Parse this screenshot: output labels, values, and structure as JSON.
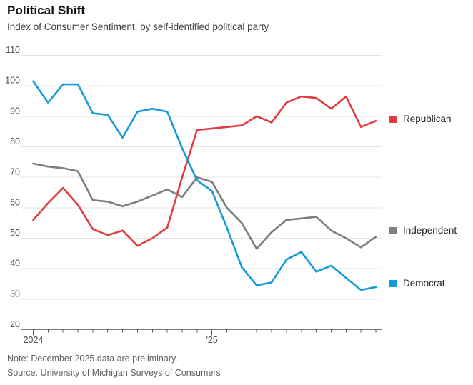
{
  "header": {
    "title": "Political Shift",
    "subtitle": "Index of Consumer Sentiment, by self-identified political party"
  },
  "footer": {
    "note": "Note: December 2025 data are preliminary.",
    "source": "Source: University of Michigan Surveys of Consumers"
  },
  "colors": {
    "republican": "#e03b40",
    "independent": "#7d7d80",
    "democrat": "#149bd8",
    "gridline": "#e4e4e4",
    "axis_line": "#7a7a7a",
    "tick": "#555555",
    "axis_label": "#4d4d4d"
  },
  "chart_data": {
    "type": "line",
    "x_axis": {
      "n_points": 24,
      "start": "Jan 2024",
      "end": "Dec 2025",
      "tick_interval": "monthly",
      "year_labels": [
        {
          "label": "2024",
          "month_index": 0
        },
        {
          "label": "'25",
          "month_index": 12
        }
      ]
    },
    "ylim": [
      20,
      110
    ],
    "y_ticks": [
      20,
      30,
      40,
      50,
      60,
      70,
      80,
      90,
      100,
      110
    ],
    "grid": "horizontal",
    "legend_position": "right",
    "series": [
      {
        "name": "Republican",
        "color_key": "republican",
        "values": [
          56,
          61.5,
          66.5,
          61,
          53,
          51,
          52.5,
          47.5,
          50,
          53.5,
          70,
          85.5,
          86,
          86.5,
          87,
          90,
          88,
          94.5,
          96.5,
          96,
          92.5,
          96.5,
          86.5,
          88.5
        ]
      },
      {
        "name": "Independent",
        "color_key": "independent",
        "values": [
          74.5,
          73.5,
          73,
          72,
          62.5,
          62,
          60.5,
          62,
          64,
          66,
          63.5,
          70,
          68.5,
          60,
          55,
          46.5,
          52,
          56,
          56.5,
          57,
          52.5,
          50,
          47,
          50.5
        ]
      },
      {
        "name": "Democrat",
        "color_key": "democrat",
        "values": [
          101.5,
          94.5,
          100.5,
          100.5,
          91,
          90.5,
          83,
          91.5,
          92.5,
          91.5,
          79.5,
          69,
          65.5,
          53.5,
          40.5,
          34.5,
          35.5,
          43,
          45.5,
          39,
          41,
          37,
          33,
          34
        ]
      }
    ]
  }
}
